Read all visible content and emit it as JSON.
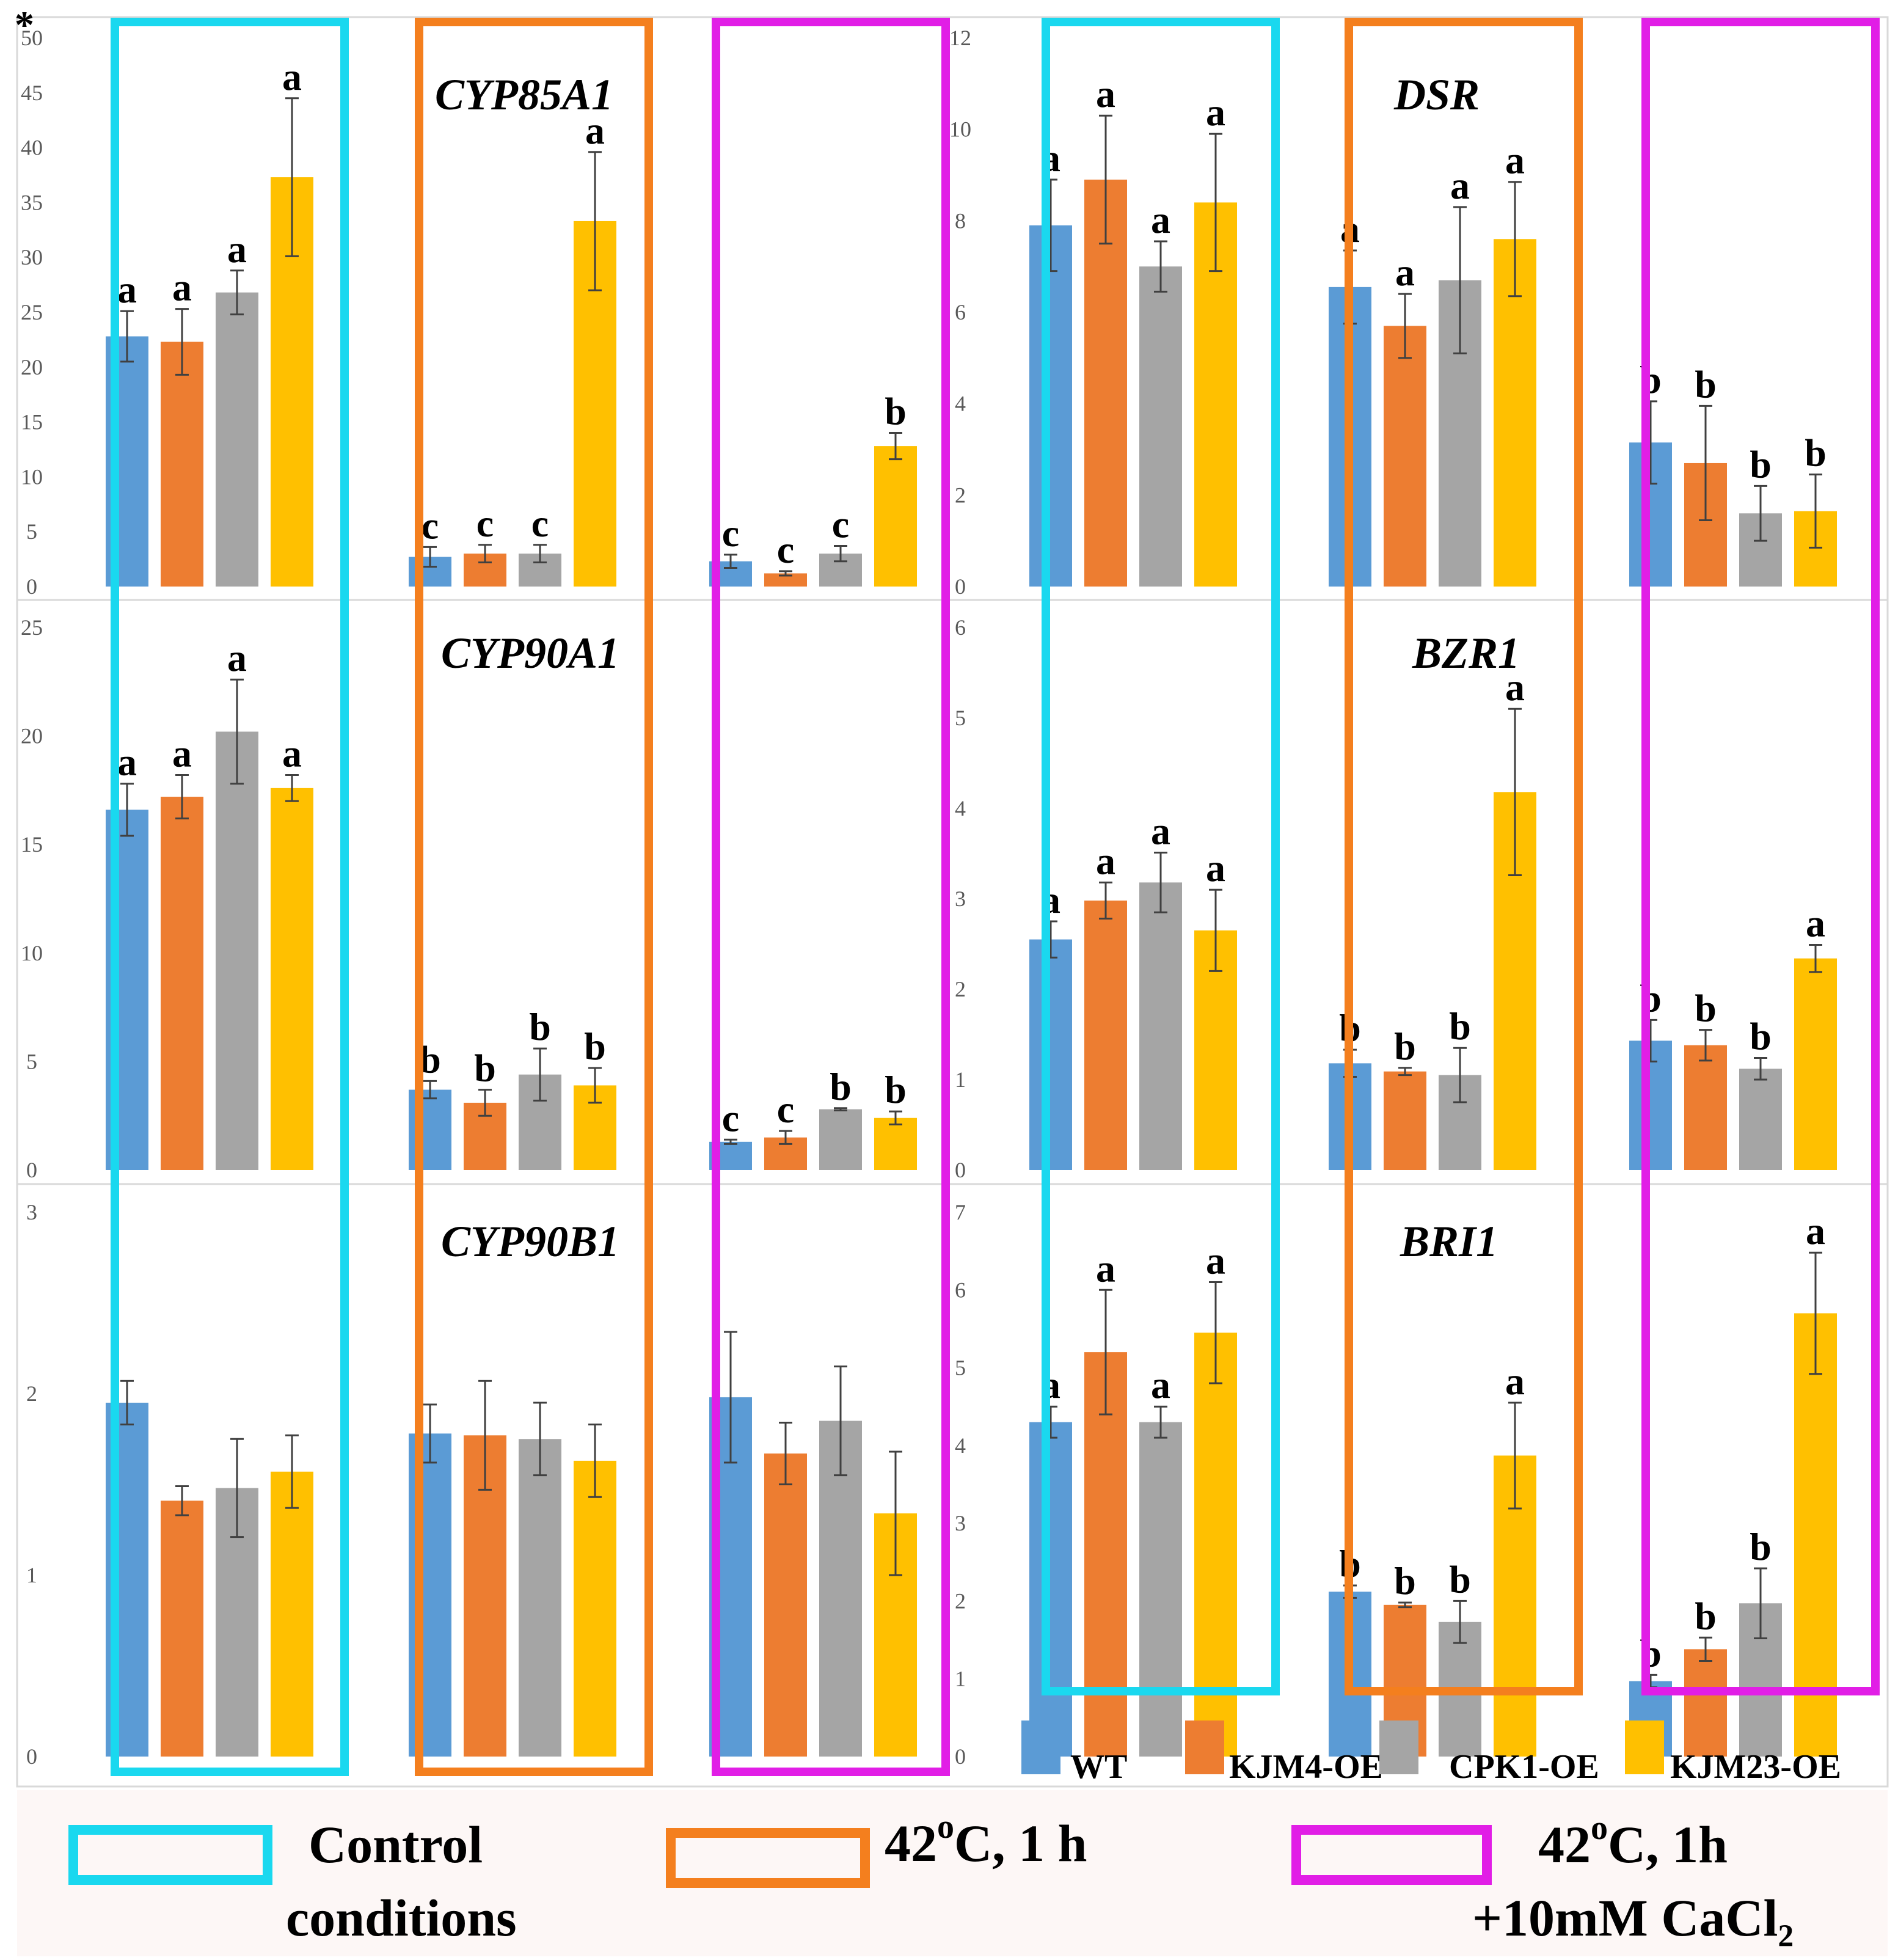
{
  "asterisk": "*",
  "colors": {
    "WT": "#5b9bd5",
    "KJM4-OE": "#ed7d31",
    "CPK1-OE": "#a5a5a5",
    "KJM23-OE": "#ffc000",
    "control_box": "#1ad8ef",
    "heat_box": "#f47f1e",
    "calcium_box": "#e11ee6",
    "caption_bg": "#fdf7f6"
  },
  "legend": {
    "series": [
      "WT",
      "KJM4-OE",
      "CPK1-OE",
      "KJM23-OE"
    ]
  },
  "captions": {
    "control_line1": "Control",
    "control_line2": "conditions",
    "heat_main": "42",
    "heat_sup": "o",
    "heat_rest": "C, 1 h",
    "calcium_main": "42",
    "calcium_sup": "o",
    "calcium_rest": "C, 1h",
    "calcium_line2": "+10mM CaCl₂"
  },
  "chart_data": [
    {
      "type": "bar",
      "gene": "CYP85A1",
      "panel": "top-left",
      "conditions": [
        "Control conditions",
        "42oC, 1 h",
        "42oC, 1h +10mM CaCl2"
      ],
      "series_names": [
        "WT",
        "KJM4-OE",
        "CPK1-OE",
        "KJM23-OE"
      ],
      "ylim": [
        0,
        50
      ],
      "yticks": [
        "0",
        "5",
        "10",
        "15",
        "20",
        "25",
        "30",
        "35",
        "40",
        "45",
        "50"
      ],
      "groups": [
        {
          "values": [
            22.8,
            22.3,
            26.8,
            37.3
          ],
          "errors": [
            2.3,
            3.0,
            2.0,
            7.2
          ],
          "labels": [
            "a",
            "a",
            "a",
            "a"
          ]
        },
        {
          "values": [
            2.7,
            3.0,
            3.0,
            33.3
          ],
          "errors": [
            0.9,
            0.8,
            0.8,
            6.3
          ],
          "labels": [
            "c",
            "c",
            "c",
            "a"
          ]
        },
        {
          "values": [
            2.3,
            1.2,
            3.0,
            12.8
          ],
          "errors": [
            0.6,
            0.2,
            0.7,
            1.2
          ],
          "labels": [
            "c",
            "c",
            "c",
            "b"
          ]
        }
      ]
    },
    {
      "type": "bar",
      "gene": "DSR",
      "panel": "top-right",
      "conditions": [
        "Control conditions",
        "42oC, 1 h",
        "42oC, 1h +10mM CaCl2"
      ],
      "series_names": [
        "WT",
        "KJM4-OE",
        "CPK1-OE",
        "KJM23-OE"
      ],
      "ylim": [
        0,
        12
      ],
      "yticks": [
        "0",
        "2",
        "4",
        "6",
        "8",
        "10",
        "12"
      ],
      "groups": [
        {
          "values": [
            7.9,
            8.9,
            7.0,
            8.4
          ],
          "errors": [
            1.0,
            1.4,
            0.55,
            1.5
          ],
          "labels": [
            "a",
            "a",
            "a",
            "a"
          ]
        },
        {
          "values": [
            6.55,
            5.7,
            6.7,
            7.6
          ],
          "errors": [
            0.8,
            0.7,
            1.6,
            1.25
          ],
          "labels": [
            "a",
            "a",
            "a",
            "a"
          ]
        },
        {
          "values": [
            3.15,
            2.7,
            1.6,
            1.65
          ],
          "errors": [
            0.9,
            1.25,
            0.6,
            0.8
          ],
          "labels": [
            "b",
            "b",
            "b",
            "b"
          ]
        }
      ]
    },
    {
      "type": "bar",
      "gene": "CYP90A1",
      "panel": "middle-left",
      "conditions": [
        "Control conditions",
        "42oC, 1 h",
        "42oC, 1h +10mM CaCl2"
      ],
      "series_names": [
        "WT",
        "KJM4-OE",
        "CPK1-OE",
        "KJM23-OE"
      ],
      "ylim": [
        0,
        25
      ],
      "yticks": [
        "0",
        "5",
        "10",
        "15",
        "20",
        "25"
      ],
      "groups": [
        {
          "values": [
            16.6,
            17.2,
            20.2,
            17.6
          ],
          "errors": [
            1.2,
            1.0,
            2.4,
            0.6
          ],
          "labels": [
            "a",
            "a",
            "a",
            "a"
          ]
        },
        {
          "values": [
            3.7,
            3.1,
            4.4,
            3.9
          ],
          "errors": [
            0.4,
            0.6,
            1.2,
            0.8
          ],
          "labels": [
            "b",
            "b",
            "b",
            "b"
          ]
        },
        {
          "values": [
            1.3,
            1.5,
            2.8,
            2.4
          ],
          "errors": [
            0.1,
            0.3,
            0.05,
            0.3
          ],
          "labels": [
            "c",
            "c",
            "b",
            "b"
          ]
        }
      ]
    },
    {
      "type": "bar",
      "gene": "BZR1",
      "panel": "middle-right",
      "conditions": [
        "Control conditions",
        "42oC, 1 h",
        "42oC, 1h +10mM CaCl2"
      ],
      "series_names": [
        "WT",
        "KJM4-OE",
        "CPK1-OE",
        "KJM23-OE"
      ],
      "ylim": [
        0,
        6
      ],
      "yticks": [
        "0",
        "1",
        "2",
        "3",
        "4",
        "5",
        "6"
      ],
      "groups": [
        {
          "values": [
            2.55,
            2.98,
            3.18,
            2.65
          ],
          "errors": [
            0.2,
            0.2,
            0.33,
            0.45
          ],
          "labels": [
            "a",
            "a",
            "a",
            "a"
          ]
        },
        {
          "values": [
            1.18,
            1.09,
            1.05,
            4.18
          ],
          "errors": [
            0.15,
            0.04,
            0.3,
            0.92
          ],
          "labels": [
            "b",
            "b",
            "b",
            "a"
          ]
        },
        {
          "values": [
            1.43,
            1.38,
            1.12,
            2.34
          ],
          "errors": [
            0.23,
            0.17,
            0.12,
            0.15
          ],
          "labels": [
            "b",
            "b",
            "b",
            "a"
          ]
        }
      ]
    },
    {
      "type": "bar",
      "gene": "CYP90B1",
      "panel": "bottom-left",
      "conditions": [
        "Control conditions",
        "42oC, 1 h",
        "42oC, 1h +10mM CaCl2"
      ],
      "series_names": [
        "WT",
        "KJM4-OE",
        "CPK1-OE",
        "KJM23-OE"
      ],
      "ylim": [
        0,
        3
      ],
      "yticks": [
        "0",
        "1",
        "2",
        "3"
      ],
      "groups": [
        {
          "values": [
            1.95,
            1.41,
            1.48,
            1.57
          ],
          "errors": [
            0.12,
            0.08,
            0.27,
            0.2
          ],
          "labels": [
            "",
            "",
            "",
            ""
          ]
        },
        {
          "values": [
            1.78,
            1.77,
            1.75,
            1.63
          ],
          "errors": [
            0.16,
            0.3,
            0.2,
            0.2
          ],
          "labels": [
            "",
            "",
            "",
            ""
          ]
        },
        {
          "values": [
            1.98,
            1.67,
            1.85,
            1.34
          ],
          "errors": [
            0.36,
            0.17,
            0.3,
            0.34
          ],
          "labels": [
            "",
            "",
            "",
            ""
          ]
        }
      ]
    },
    {
      "type": "bar",
      "gene": "BRI1",
      "panel": "bottom-right",
      "conditions": [
        "Control conditions",
        "42oC, 1 h",
        "42oC, 1h +10mM CaCl2"
      ],
      "series_names": [
        "WT",
        "KJM4-OE",
        "CPK1-OE",
        "KJM23-OE"
      ],
      "ylim": [
        0,
        7
      ],
      "yticks": [
        "0",
        "1",
        "2",
        "3",
        "4",
        "5",
        "6",
        "7"
      ],
      "groups": [
        {
          "values": [
            4.3,
            5.2,
            4.3,
            5.45
          ],
          "errors": [
            0.2,
            0.8,
            0.2,
            0.65
          ],
          "labels": [
            "a",
            "a",
            "a",
            "a"
          ]
        },
        {
          "values": [
            2.12,
            1.95,
            1.73,
            3.87
          ],
          "errors": [
            0.08,
            0.03,
            0.27,
            0.68
          ],
          "labels": [
            "b",
            "b",
            "b",
            "a"
          ]
        },
        {
          "values": [
            0.97,
            1.38,
            1.97,
            5.7
          ],
          "errors": [
            0.08,
            0.15,
            0.45,
            0.78
          ],
          "labels": [
            "b",
            "b",
            "b",
            "a"
          ]
        }
      ]
    }
  ]
}
